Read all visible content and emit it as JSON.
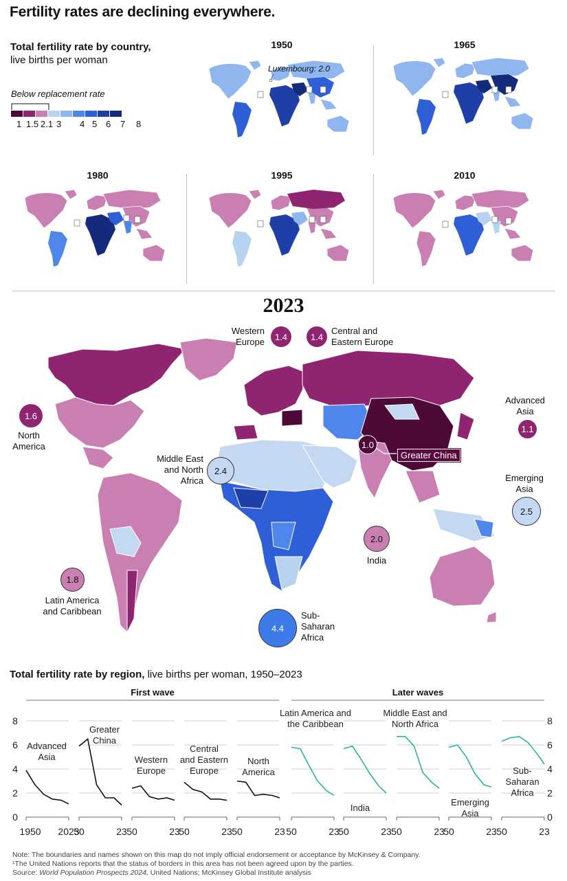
{
  "title": "Fertility rates are declining everywhere.",
  "map_section": {
    "subtitle_bold": "Total fertility rate by country,",
    "subtitle_rest": "live births per woman",
    "legend_title": "Below replacement rate",
    "legend_ticks": [
      "1",
      "1.5",
      "2.1",
      "3",
      "4",
      "5",
      "6",
      "7",
      "8"
    ],
    "legend_colors": [
      "#4d0a36",
      "#8f2470",
      "#c97fb2",
      "#b8d3f0",
      "#8fb6ef",
      "#4f86ec",
      "#2f5fd6",
      "#1f3fa8",
      "#142a7a"
    ],
    "small_maps": [
      {
        "year": "1950",
        "annotation": "Luxembourg: 2.0"
      },
      {
        "year": "1965"
      },
      {
        "year": "1980"
      },
      {
        "year": "1995"
      },
      {
        "year": "2010"
      }
    ],
    "footnote_marker": "1",
    "main_year": "2023",
    "regions": [
      {
        "name": "Western Europe",
        "value": "1.4",
        "color": "#8f2470"
      },
      {
        "name": "Central and Eastern Europe",
        "value": "1.4",
        "color": "#8f2470"
      },
      {
        "name": "North America",
        "value": "1.6",
        "color": "#8f2470"
      },
      {
        "name": "Advanced Asia",
        "value": "1.1",
        "color": "#8f2470"
      },
      {
        "name": "Middle East and North Africa",
        "value": "2.4",
        "color": "#c5d8f2"
      },
      {
        "name": "Greater China",
        "value": "1.0",
        "color": "#4d0a36"
      },
      {
        "name": "Emerging Asia",
        "value": "2.5",
        "color": "#c5d8f2"
      },
      {
        "name": "India",
        "value": "2.0",
        "color": "#c97fb2"
      },
      {
        "name": "Latin America and Caribbean",
        "value": "1.8",
        "color": "#c97fb2"
      },
      {
        "name": "Sub-Saharan Africa",
        "value": "4.4",
        "color": "#3d7be8"
      }
    ]
  },
  "region_section": {
    "title_bold": "Total fertility rate by region,",
    "title_rest": " live births per woman, 1950–2023",
    "first_wave": "First wave",
    "later_waves": "Later waves",
    "y_ticks": [
      "0",
      "2",
      "4",
      "6",
      "8"
    ],
    "x_ticks_first": [
      "1950",
      "2023"
    ],
    "x_ticks": [
      "50",
      "23"
    ]
  },
  "chart_data": {
    "type": "line",
    "title": "Total fertility rate by region, live births per woman, 1950–2023",
    "x": [
      1950,
      1965,
      1980,
      1995,
      2010,
      2023
    ],
    "ylim": [
      0,
      8
    ],
    "grid": true,
    "series": [
      {
        "name": "Advanced Asia",
        "group": "First wave",
        "color": "#111111",
        "values": [
          3.9,
          2.7,
          1.9,
          1.5,
          1.4,
          1.1
        ]
      },
      {
        "name": "Greater China",
        "group": "First wave",
        "color": "#111111",
        "values": [
          5.9,
          6.5,
          2.7,
          1.6,
          1.6,
          1.0
        ]
      },
      {
        "name": "Western Europe",
        "group": "First wave",
        "color": "#111111",
        "values": [
          2.4,
          2.6,
          1.7,
          1.5,
          1.6,
          1.4
        ]
      },
      {
        "name": "Central and Eastern Europe",
        "group": "First wave",
        "color": "#111111",
        "values": [
          2.9,
          2.3,
          2.1,
          1.5,
          1.5,
          1.4
        ]
      },
      {
        "name": "North America",
        "group": "First wave",
        "color": "#111111",
        "values": [
          3.0,
          2.9,
          1.8,
          1.9,
          1.8,
          1.6
        ]
      },
      {
        "name": "Latin America and the Caribbean",
        "group": "Later waves",
        "color": "#2bb3a0",
        "values": [
          5.8,
          5.7,
          4.3,
          3.0,
          2.2,
          1.8
        ]
      },
      {
        "name": "India",
        "group": "Later waves",
        "color": "#2bb3a0",
        "values": [
          5.7,
          5.9,
          4.8,
          3.6,
          2.6,
          2.0
        ]
      },
      {
        "name": "Middle East and North Africa",
        "group": "Later waves",
        "color": "#2bb3a0",
        "values": [
          6.7,
          6.7,
          5.9,
          3.7,
          2.9,
          2.4
        ]
      },
      {
        "name": "Emerging Asia",
        "group": "Later waves",
        "color": "#2bb3a0",
        "values": [
          5.8,
          6.0,
          5.0,
          3.6,
          2.7,
          2.5
        ]
      },
      {
        "name": "Sub-Saharan Africa",
        "group": "Later waves",
        "color": "#2bb3a0",
        "values": [
          6.3,
          6.6,
          6.7,
          6.2,
          5.3,
          4.4
        ]
      }
    ],
    "panel_labels": [
      "Advanced Asia",
      "Greater China",
      "Western Europe",
      "Central and Eastern Europe",
      "North America",
      "Latin America and the Caribbean",
      "India",
      "Middle East and North Africa",
      "Emerging Asia",
      "Sub-Saharan Africa"
    ]
  },
  "notes": {
    "note": "Note: The boundaries and names shown on this map do not imply official endorsement or acceptance by McKinsey & Company.",
    "footnote": "¹The United Nations reports that the status of borders in this area has not been agreed upon by the parties.",
    "source_prefix": "Source: ",
    "source_italic": "World Population Prospects 2024,",
    "source_rest": " United Nations; McKinsey Global Institute analysis"
  }
}
